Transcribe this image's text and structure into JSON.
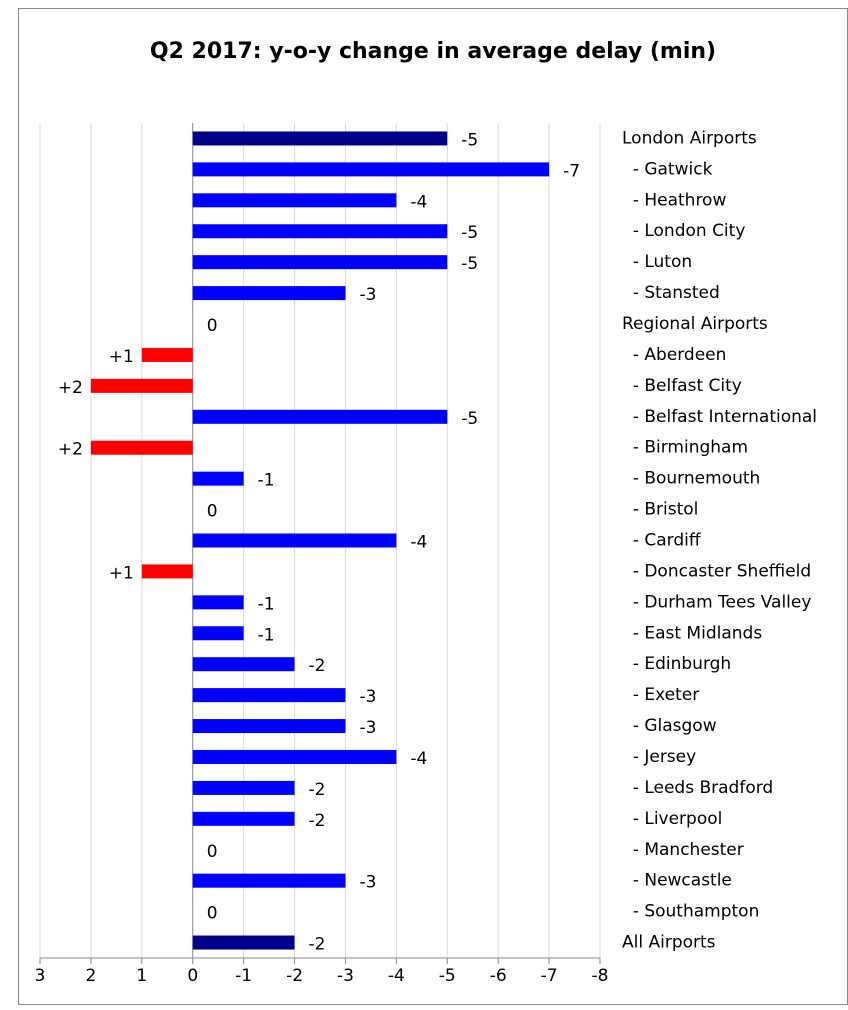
{
  "chart_data": {
    "type": "bar",
    "orientation": "horizontal",
    "title": "Q2 2017: y-o-y change in average delay (min)",
    "categories": [
      "London Airports",
      "  - Gatwick",
      "  - Heathrow",
      "  - London City",
      "  - Luton",
      "  - Stansted",
      "Regional Airports",
      "  - Aberdeen",
      "  - Belfast City",
      "  - Belfast International",
      "  - Birmingham",
      "  - Bournemouth",
      "  - Bristol",
      "  - Cardiff",
      "  - Doncaster Sheffield",
      "  - Durham Tees Valley",
      "  - East Midlands",
      "  - Edinburgh",
      "  - Exeter",
      "  - Glasgow",
      "  - Jersey",
      "  - Leeds Bradford",
      "  - Liverpool",
      "  - Manchester",
      "  - Newcastle",
      "  - Southampton",
      "All Airports"
    ],
    "values": [
      -5,
      -7,
      -4,
      -5,
      -5,
      -3,
      0,
      1,
      2,
      -5,
      2,
      -1,
      0,
      -4,
      1,
      -1,
      -1,
      -2,
      -3,
      -3,
      -4,
      -2,
      -2,
      0,
      -3,
      0,
      -2
    ],
    "value_labels": [
      "-5",
      "-7",
      "-4",
      "-5",
      "-5",
      "-3",
      "0",
      "+1",
      "+2",
      "-5",
      "+2",
      "-1",
      "0",
      "-4",
      "+1",
      "-1",
      "-1",
      "-2",
      "-3",
      "-3",
      "-4",
      "-2",
      "-2",
      "0",
      "-3",
      "0",
      "-2"
    ],
    "colors": [
      "#00008b",
      "#0000ff",
      "#0000ff",
      "#0000ff",
      "#0000ff",
      "#0000ff",
      "#0000ff",
      "#ff0000",
      "#ff0000",
      "#0000ff",
      "#ff0000",
      "#0000ff",
      "#0000ff",
      "#0000ff",
      "#ff0000",
      "#0000ff",
      "#0000ff",
      "#0000ff",
      "#0000ff",
      "#0000ff",
      "#0000ff",
      "#0000ff",
      "#0000ff",
      "#0000ff",
      "#0000ff",
      "#0000ff",
      "#00008b"
    ],
    "xlim": [
      3,
      -8
    ],
    "xticks": [
      3,
      2,
      1,
      0,
      -1,
      -2,
      -3,
      -4,
      -5,
      -6,
      -7,
      -8
    ],
    "grid": true
  }
}
